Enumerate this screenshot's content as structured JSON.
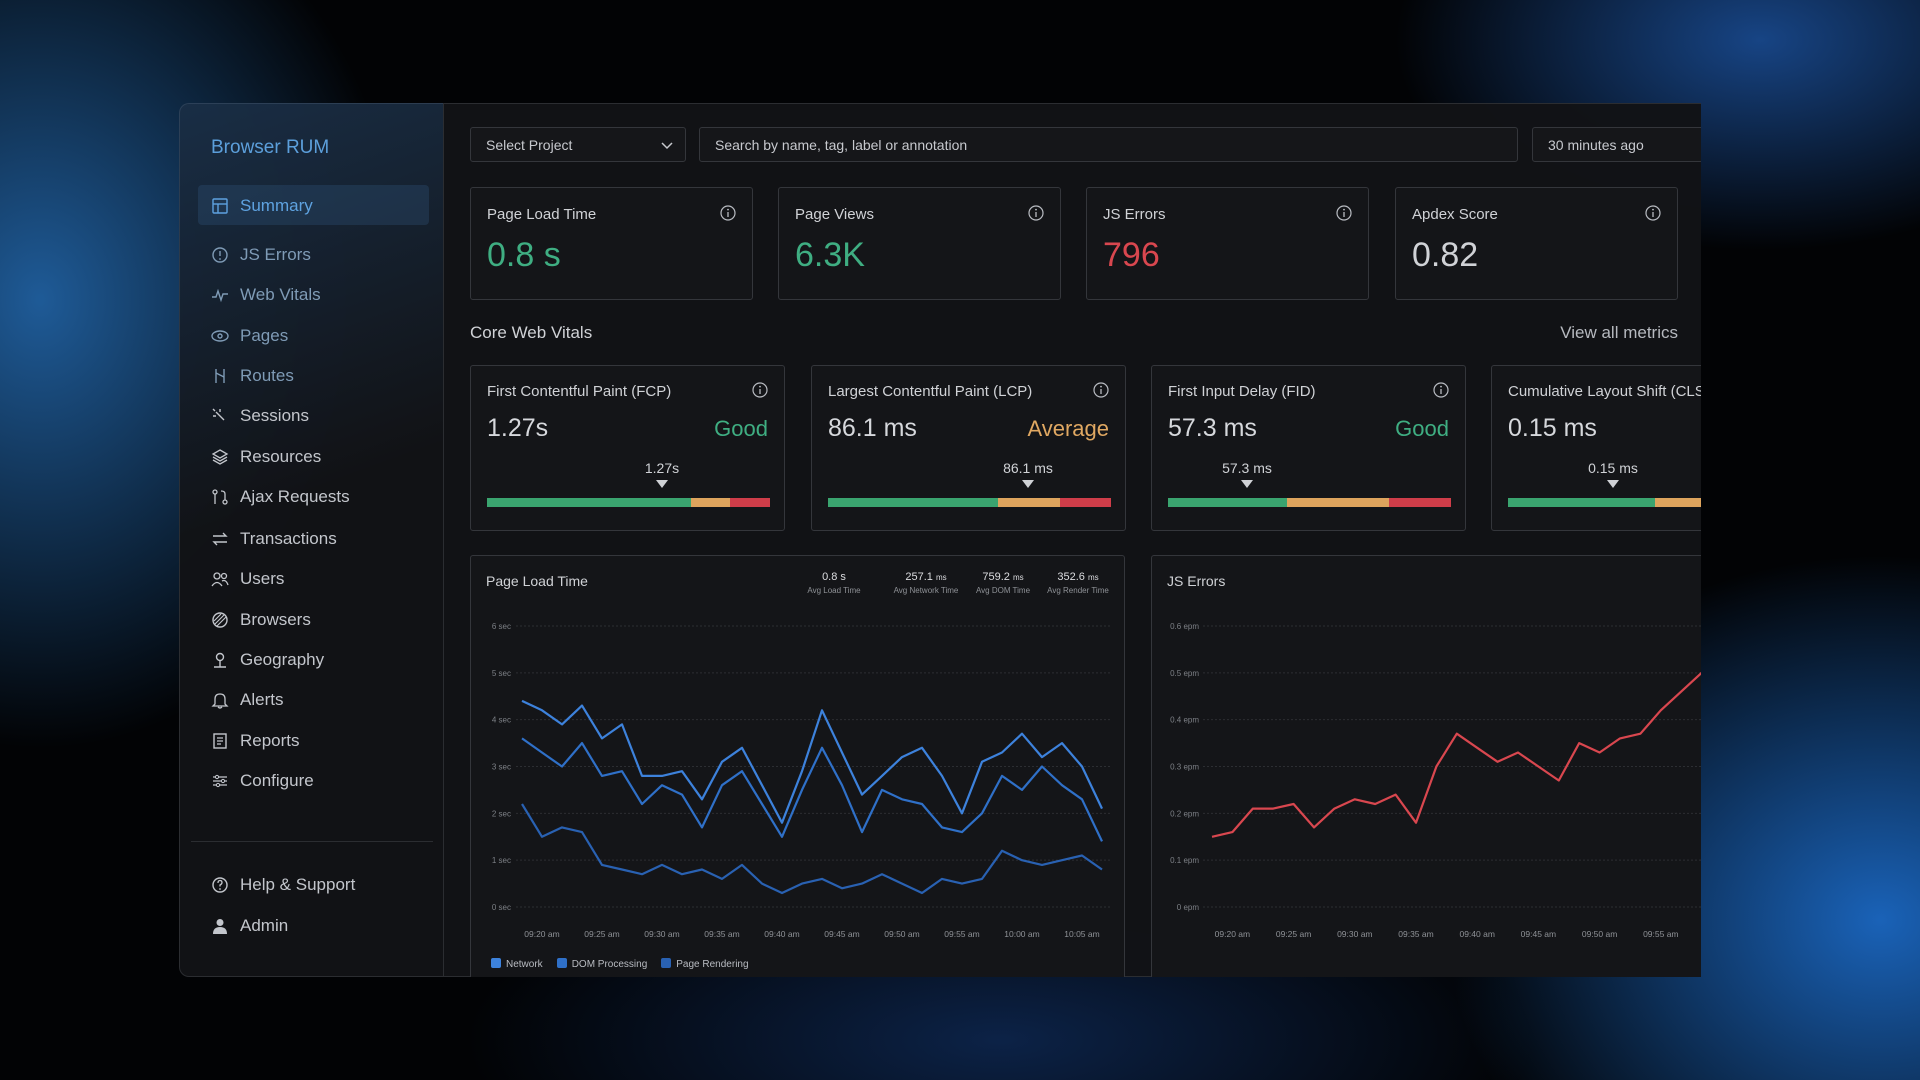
{
  "sidebar": {
    "title": "Browser RUM",
    "nav": [
      "Summary",
      "JS Errors",
      "Web Vitals",
      "Pages",
      "Routes",
      "Sessions",
      "Resources",
      "Ajax Requests",
      "Transactions",
      "Users",
      "Browsers",
      "Geography",
      "Alerts",
      "Reports",
      "Configure"
    ],
    "footer": [
      "Help & Support",
      "Admin"
    ]
  },
  "toolbar": {
    "project": "Select Project",
    "search": "Search by name, tag, label or annotation",
    "time": "30 minutes ago"
  },
  "kpis": [
    {
      "label": "Page Load Time",
      "value": "0.8 s"
    },
    {
      "label": "Page Views",
      "value": "6.3K"
    },
    {
      "label": "JS Errors",
      "value": "796"
    },
    {
      "label": "Apdex Score",
      "value": "0.82"
    }
  ],
  "vitals": {
    "title": "Core Web Vitals",
    "link": "View all metrics",
    "cards": [
      {
        "name": "First Contentful Paint (FCP)",
        "value": "1.27s",
        "status": "Good",
        "marker": "1.27s"
      },
      {
        "name": "Largest Contentful Paint (LCP)",
        "value": "86.1 ms",
        "status": "Average",
        "marker": "86.1 ms"
      },
      {
        "name": "First Input Delay (FID)",
        "value": "57.3 ms",
        "status": "Good",
        "marker": "57.3 ms"
      },
      {
        "name": "Cumulative Layout Shift (CLS)",
        "value": "0.15 ms",
        "marker": "0.15 ms"
      }
    ]
  },
  "chart_data": [
    {
      "type": "line",
      "title": "Page Load Time",
      "stats": [
        {
          "value": "0.8 s",
          "label": "Avg Load Time"
        },
        {
          "value": "257.1",
          "unit": "ms",
          "label": "Avg Network Time"
        },
        {
          "value": "759.2",
          "unit": "ms",
          "label": "Avg DOM Time"
        },
        {
          "value": "352.6",
          "unit": "ms",
          "label": "Avg Render Time"
        }
      ],
      "categories": [
        null,
        "09:20 am",
        null,
        null,
        "09:25 am",
        null,
        null,
        "09:30 am",
        null,
        null,
        "09:35 am",
        null,
        null,
        "09:40 am",
        null,
        null,
        "09:45 am",
        null,
        null,
        "09:50 am",
        null,
        null,
        "09:55 am",
        null,
        null,
        "10:00 am",
        null,
        null,
        "10:05 am",
        null
      ],
      "series": [
        {
          "name": "Network",
          "color": "#3d82dc",
          "values": [
            4.4,
            4.2,
            3.9,
            4.3,
            3.6,
            3.9,
            2.8,
            2.8,
            2.9,
            2.3,
            3.1,
            3.4,
            2.6,
            1.8,
            2.9,
            4.2,
            3.3,
            2.4,
            2.8,
            3.2,
            3.4,
            2.8,
            2.0,
            3.1,
            3.3,
            3.7,
            3.2,
            3.5,
            3.0,
            2.1
          ]
        },
        {
          "name": "DOM Processing",
          "color": "#2f70c8",
          "values": [
            3.6,
            3.3,
            3.0,
            3.5,
            2.8,
            2.9,
            2.2,
            2.6,
            2.4,
            1.7,
            2.6,
            2.9,
            2.2,
            1.5,
            2.5,
            3.4,
            2.6,
            1.6,
            2.5,
            2.3,
            2.2,
            1.7,
            1.6,
            2.0,
            2.8,
            2.5,
            3.0,
            2.6,
            2.3,
            1.4
          ]
        },
        {
          "name": "Page Rendering",
          "color": "#2961b2",
          "values": [
            2.2,
            1.5,
            1.7,
            1.6,
            0.9,
            0.8,
            0.7,
            0.9,
            0.7,
            0.8,
            0.6,
            0.9,
            0.5,
            0.3,
            0.5,
            0.6,
            0.4,
            0.5,
            0.7,
            0.5,
            0.3,
            0.6,
            0.5,
            0.6,
            1.2,
            1.0,
            0.9,
            1.0,
            1.1,
            0.8
          ]
        }
      ],
      "ylim": [
        0,
        6
      ],
      "yticks": [
        {
          "value": 0,
          "label": "0 sec"
        },
        {
          "value": 1,
          "label": "1 sec"
        },
        {
          "value": 2,
          "label": "2 sec"
        },
        {
          "value": 3,
          "label": "3 sec"
        },
        {
          "value": 4,
          "label": "4 sec"
        },
        {
          "value": 5,
          "label": "5 sec"
        },
        {
          "value": 6,
          "label": "6 sec"
        }
      ],
      "grid": true
    },
    {
      "type": "line",
      "title": "JS Errors",
      "categories": [
        null,
        "09:20 am",
        null,
        null,
        "09:25 am",
        null,
        null,
        "09:30 am",
        null,
        null,
        "09:35 am",
        null,
        null,
        "09:40 am",
        null,
        null,
        "09:45 am",
        null,
        null,
        "09:50 am",
        null,
        null,
        "09:55 am",
        null,
        null
      ],
      "values": [
        0.15,
        0.16,
        0.21,
        0.21,
        0.22,
        0.17,
        0.21,
        0.23,
        0.22,
        0.24,
        0.18,
        0.3,
        0.37,
        0.34,
        0.31,
        0.33,
        0.3,
        0.27,
        0.35,
        0.33,
        0.36,
        0.37,
        0.42,
        0.46,
        0.5
      ],
      "color": "#d9474f",
      "ylim": [
        0,
        0.6
      ],
      "yticks": [
        {
          "value": 0,
          "label": "0 epm"
        },
        {
          "value": 0.1,
          "label": "0.1 epm"
        },
        {
          "value": 0.2,
          "label": "0.2 epm"
        },
        {
          "value": 0.3,
          "label": "0.3 epm"
        },
        {
          "value": 0.4,
          "label": "0.4 epm"
        },
        {
          "value": 0.5,
          "label": "0.5 epm"
        },
        {
          "value": 0.6,
          "label": "0.6 epm"
        }
      ],
      "grid": true
    }
  ]
}
